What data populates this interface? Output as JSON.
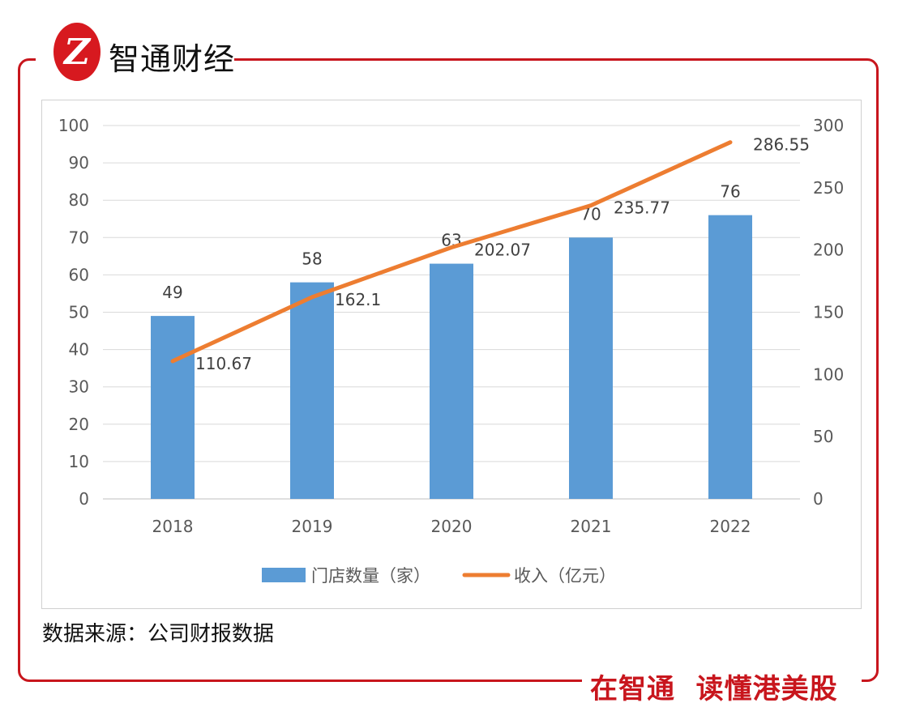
{
  "brand": {
    "logo_text": "智通财经",
    "logo_mark": "Z",
    "slogan": "在智通  读懂港美股"
  },
  "source": "数据来源：公司财报数据",
  "colors": {
    "bar": "#5B9BD5",
    "line": "#ED7D31",
    "brand_red": "#C8161D"
  },
  "chart_data": {
    "type": "bar+line",
    "categories": [
      "2018",
      "2019",
      "2020",
      "2021",
      "2022"
    ],
    "series": [
      {
        "name": "门店数量（家）",
        "type": "bar",
        "axis": "left",
        "values": [
          49,
          58,
          63,
          70,
          76
        ],
        "labels": [
          "49",
          "58",
          "63",
          "70",
          "76"
        ]
      },
      {
        "name": "收入（亿元）",
        "type": "line",
        "axis": "right",
        "values": [
          110.67,
          162.1,
          202.07,
          235.77,
          286.55
        ],
        "labels": [
          "110.67",
          "162.1",
          "202.07",
          "235.77",
          "286.55"
        ]
      }
    ],
    "y_left": {
      "range": [
        0,
        100
      ],
      "ticks": [
        "0",
        "10",
        "20",
        "30",
        "40",
        "50",
        "60",
        "70",
        "80",
        "90",
        "100"
      ]
    },
    "y_right": {
      "range": [
        0,
        300
      ],
      "ticks": [
        "0",
        "50",
        "100",
        "150",
        "200",
        "250",
        "300"
      ]
    },
    "grid": true,
    "legend": "bottom"
  }
}
